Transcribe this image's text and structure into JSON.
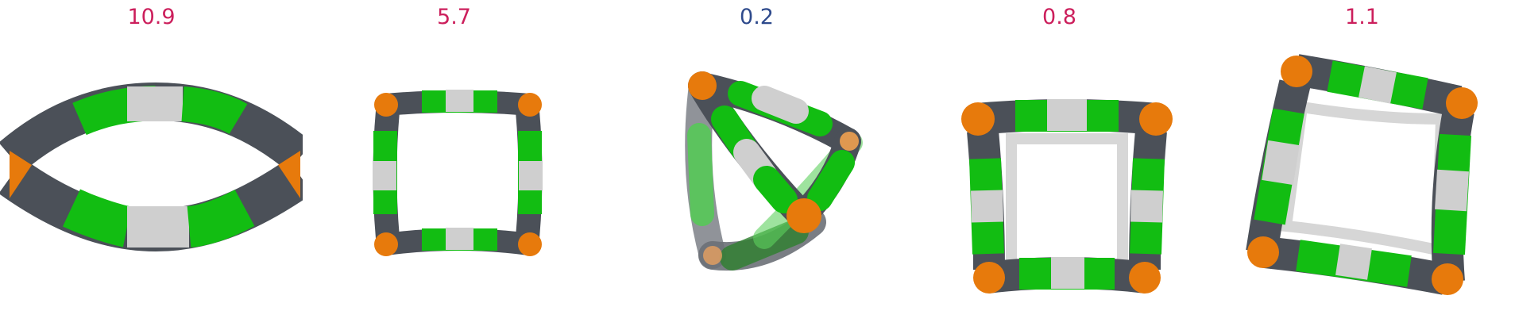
{
  "colors": {
    "label_pink": "#cc1f5c",
    "label_blue": "#2e4a8c",
    "orange": "#e77a0c",
    "dark": "#50555c",
    "green": "#12bd12",
    "silver": "#c7c7c7"
  },
  "panels": [
    {
      "label": "10.9",
      "label_color": "#cc1f5c"
    },
    {
      "label": "5.7",
      "label_color": "#cc1f5c"
    },
    {
      "label": "0.2",
      "label_color": "#2e4a8c"
    },
    {
      "label": "0.8",
      "label_color": "#cc1f5c"
    },
    {
      "label": "1.1",
      "label_color": "#cc1f5c"
    }
  ]
}
